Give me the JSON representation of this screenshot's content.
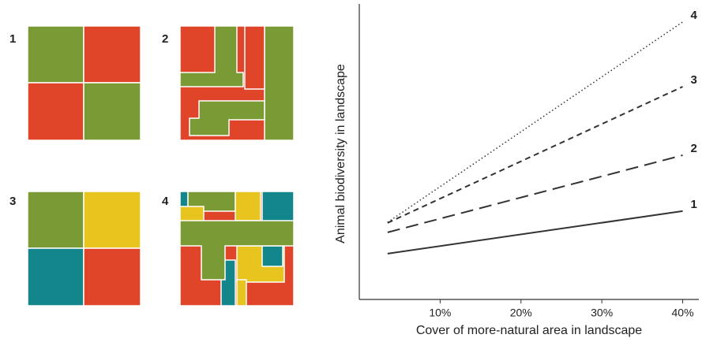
{
  "panels": [
    {
      "label": "1"
    },
    {
      "label": "2"
    },
    {
      "label": "3"
    },
    {
      "label": "4"
    }
  ],
  "chart_data": {
    "type": "line",
    "xlabel": "Cover of more-natural area in landscape",
    "ylabel": "Animal biodiversity in landscape",
    "x": [
      3.5,
      40
    ],
    "xlim": [
      0,
      42
    ],
    "xticks": [
      {
        "value": 10,
        "label": "10%"
      },
      {
        "value": 20,
        "label": "20%"
      },
      {
        "value": 30,
        "label": "30%"
      },
      {
        "value": 40,
        "label": "40%"
      }
    ],
    "ylim": [
      0,
      100
    ],
    "series": [
      {
        "name": "1",
        "color": "#333333",
        "dash": "solid",
        "values": [
          15.5,
          29.9
        ]
      },
      {
        "name": "2",
        "color": "#333333",
        "dash": "longdash",
        "values": [
          22.7,
          48.8
        ]
      },
      {
        "name": "3",
        "color": "#333333",
        "dash": "dash",
        "values": [
          25.9,
          72
        ]
      },
      {
        "name": "4",
        "color": "#333333",
        "dash": "dot",
        "values": [
          26.1,
          93.9
        ]
      }
    ]
  }
}
